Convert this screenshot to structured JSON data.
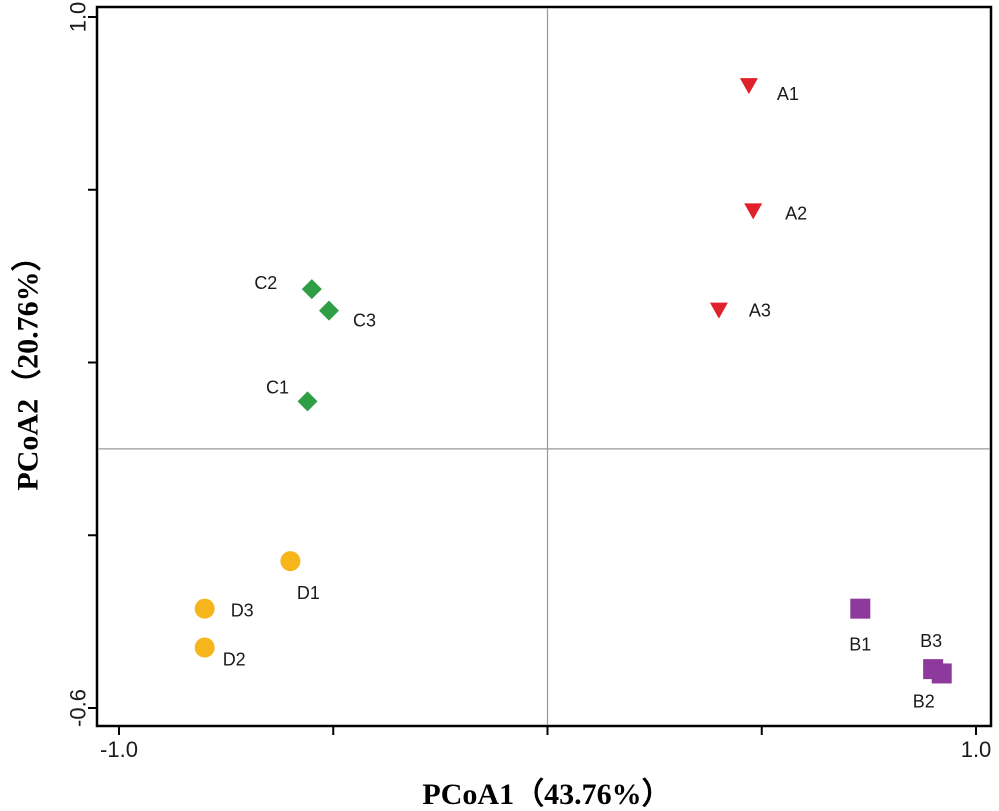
{
  "chart_data": {
    "type": "scatter",
    "xlabel": "PCoA1（43.76%）",
    "ylabel": "PCoA2（20.76%）",
    "xlim": [
      -1.0,
      1.0
    ],
    "ylim": [
      -0.6,
      1.0
    ],
    "x_tick_labels": [
      {
        "value": -1.0,
        "text": "-1.0"
      },
      {
        "value": 1.0,
        "text": "1.0"
      }
    ],
    "y_tick_labels": [
      {
        "value": -0.6,
        "text": "-0.6"
      },
      {
        "value": 1.0,
        "text": "1.0"
      }
    ],
    "x_minor_ticks": [
      -1.0,
      -0.5,
      0.0,
      0.5,
      1.0
    ],
    "y_minor_ticks": [
      -0.6,
      -0.2,
      0.2,
      0.6,
      1.0
    ],
    "reference_lines": {
      "x": 0.0,
      "y": 0.0
    },
    "series": [
      {
        "name": "A",
        "marker": "triangle-down",
        "color": "#e0202a",
        "points": [
          {
            "label": "A1",
            "x": 0.47,
            "y": 0.84
          },
          {
            "label": "A2",
            "x": 0.48,
            "y": 0.55
          },
          {
            "label": "A3",
            "x": 0.4,
            "y": 0.32
          }
        ]
      },
      {
        "name": "B",
        "marker": "square",
        "color": "#8e3a9d",
        "points": [
          {
            "label": "B1",
            "x": 0.73,
            "y": -0.37
          },
          {
            "label": "B2",
            "x": 0.92,
            "y": -0.52
          },
          {
            "label": "B3",
            "x": 0.9,
            "y": -0.51
          }
        ]
      },
      {
        "name": "C",
        "marker": "diamond",
        "color": "#2f9e44",
        "points": [
          {
            "label": "C1",
            "x": -0.56,
            "y": 0.11
          },
          {
            "label": "C2",
            "x": -0.55,
            "y": 0.37
          },
          {
            "label": "C3",
            "x": -0.51,
            "y": 0.32
          }
        ]
      },
      {
        "name": "D",
        "marker": "circle",
        "color": "#f7b51c",
        "points": [
          {
            "label": "D1",
            "x": -0.6,
            "y": -0.26
          },
          {
            "label": "D2",
            "x": -0.8,
            "y": -0.46
          },
          {
            "label": "D3",
            "x": -0.8,
            "y": -0.37
          }
        ]
      }
    ]
  }
}
